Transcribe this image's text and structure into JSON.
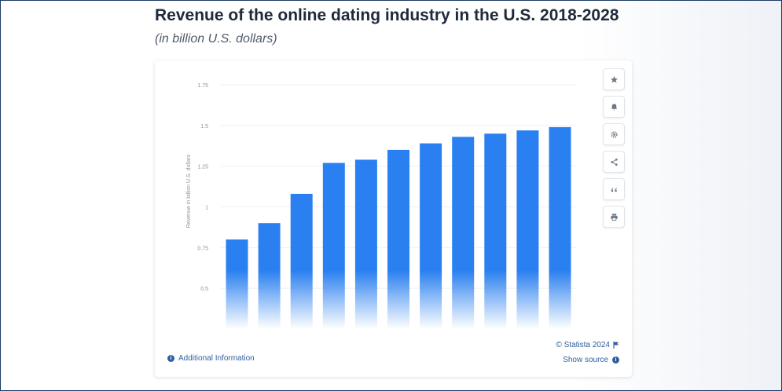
{
  "page": {
    "title": "Revenue of the online dating industry in the U.S. 2018-2028",
    "subtitle": "(in billion U.S. dollars)"
  },
  "toolbar": {
    "icons": [
      "star-icon",
      "bell-icon",
      "gear-icon",
      "share-icon",
      "quote-icon",
      "print-icon"
    ]
  },
  "footer": {
    "additional_info": "Additional Information",
    "copyright": "© Statista 2024",
    "show_source": "Show source"
  },
  "colors": {
    "bar": "#2a80f0",
    "link": "#2f5f9e"
  },
  "chart_data": {
    "type": "bar",
    "categories": [
      "",
      "",
      "",
      "",
      "",
      "",
      "",
      "",
      "",
      "",
      ""
    ],
    "values": [
      0.8,
      0.9,
      1.08,
      1.27,
      1.29,
      1.35,
      1.39,
      1.43,
      1.45,
      1.47,
      1.49
    ],
    "ylabel": "Revenue in billion U.S. dollars",
    "ylim": [
      0.25,
      1.75
    ],
    "yticks": [
      0.5,
      0.75,
      1,
      1.25,
      1.5,
      1.75
    ],
    "ytick_labels": [
      "0.5",
      "0.75",
      "1",
      "1.25",
      "1.5",
      "1.75"
    ],
    "grid": true,
    "legend": "none"
  }
}
